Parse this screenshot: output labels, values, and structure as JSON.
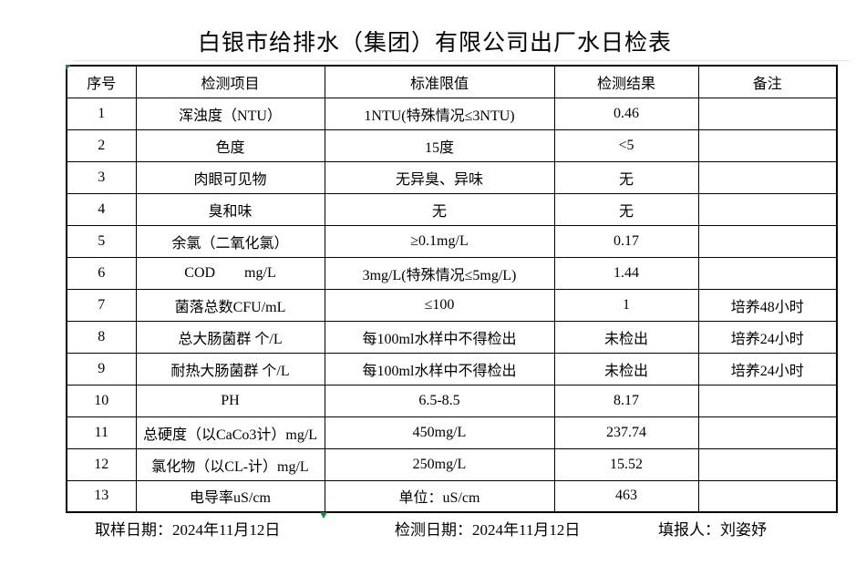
{
  "title": "白银市给排水（集团）有限公司出厂水日检表",
  "table": {
    "headers": [
      "序号",
      "检测项目",
      "标准限值",
      "检测结果",
      "备注"
    ],
    "rows": [
      {
        "no": "1",
        "item": "浑浊度（NTU）",
        "limit": "1NTU(特殊情况≤3NTU)",
        "result": "0.46",
        "note": ""
      },
      {
        "no": "2",
        "item": "色度",
        "limit": "15度",
        "result": "<5",
        "note": ""
      },
      {
        "no": "3",
        "item": "肉眼可见物",
        "limit": "无异臭、异味",
        "result": "无",
        "note": ""
      },
      {
        "no": "4",
        "item": "臭和味",
        "limit": "无",
        "result": "无",
        "note": ""
      },
      {
        "no": "5",
        "item": "余氯（二氧化氯）",
        "limit": "≥0.1mg/L",
        "result": "0.17",
        "note": ""
      },
      {
        "no": "6",
        "item": "COD        mg/L",
        "limit": "3mg/L(特殊情况≤5mg/L)",
        "result": "1.44",
        "note": ""
      },
      {
        "no": "7",
        "item": "菌落总数CFU/mL",
        "limit": "≤100",
        "result": "1",
        "note": "培养48小时"
      },
      {
        "no": "8",
        "item": "总大肠菌群 个/L",
        "limit": "每100ml水样中不得检出",
        "result": "未检出",
        "note": "培养24小时"
      },
      {
        "no": "9",
        "item": "耐热大肠菌群 个/L",
        "limit": "每100ml水样中不得检出",
        "result": "未检出",
        "note": "培养24小时"
      },
      {
        "no": "10",
        "item": "PH",
        "limit": "6.5-8.5",
        "result": "8.17",
        "note": ""
      },
      {
        "no": "11",
        "item": "总硬度（以CaCo3计）mg/L",
        "limit": "450mg/L",
        "result": "237.74",
        "note": ""
      },
      {
        "no": "12",
        "item": "氯化物（以CL-计）mg/L",
        "limit": "250mg/L",
        "result": "15.52",
        "note": ""
      },
      {
        "no": "13",
        "item": "电导率uS/cm",
        "limit": "单位：uS/cm",
        "result": "463",
        "note": ""
      }
    ]
  },
  "footer": {
    "sampling_date": "取样日期：2024年11月12日",
    "test_date": "检测日期：2024年11月12日",
    "reporter": "填报人：刘姿妤"
  },
  "colors": {
    "marker_green": "#1f8540",
    "border": "#000000",
    "background": "#ffffff"
  }
}
